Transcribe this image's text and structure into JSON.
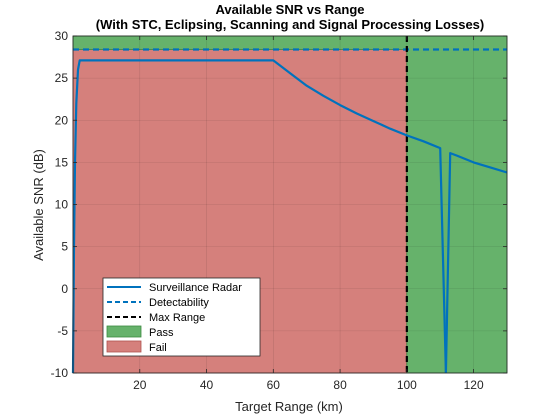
{
  "chart_data": {
    "type": "line",
    "title": "Available SNR vs Range",
    "subtitle": "(With STC, Eclipsing, Scanning and Signal Processing Losses)",
    "xlabel": "Target Range (km)",
    "ylabel": "Available SNR (dB)",
    "xlim": [
      0,
      130
    ],
    "ylim": [
      -10,
      30
    ],
    "xticks": [
      20,
      40,
      60,
      80,
      100,
      120
    ],
    "yticks": [
      -10,
      -5,
      0,
      5,
      10,
      15,
      20,
      25,
      30
    ],
    "grid": true,
    "legend_position": "bottom-left",
    "detectability": 28.4,
    "max_range": 100,
    "regions": [
      {
        "name": "Pass",
        "color": "#66b26b"
      },
      {
        "name": "Fail",
        "color": "#d5807c"
      }
    ],
    "series": [
      {
        "name": "Surveillance Radar",
        "color": "#0072bd",
        "segments": [
          {
            "x": [
              0,
              0.3,
              0.6,
              1.0,
              1.5,
              2,
              60,
              65,
              70,
              75,
              80,
              85,
              90,
              95,
              100,
              105,
              110,
              111.7
            ],
            "y": [
              -10,
              5,
              15,
              22,
              26,
              27.1,
              27.1,
              25.6,
              24.1,
              22.9,
              21.8,
              20.8,
              19.9,
              19.0,
              18.2,
              17.5,
              16.7,
              -10
            ]
          },
          {
            "x": [
              111.7,
              113,
              115,
              120,
              125,
              130
            ],
            "y": [
              -10,
              16.1,
              15.8,
              15.0,
              14.4,
              13.8
            ]
          }
        ]
      },
      {
        "name": "Detectability",
        "color": "#0072bd",
        "style": "dashed"
      },
      {
        "name": "Max Range",
        "color": "#000000",
        "style": "dashed"
      }
    ]
  }
}
